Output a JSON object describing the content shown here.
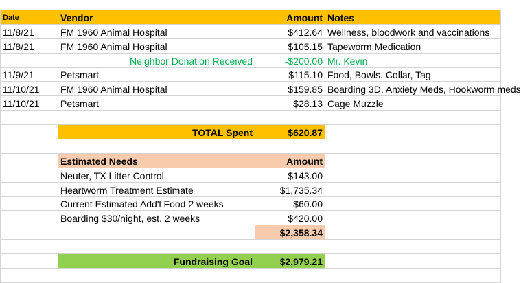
{
  "header": {
    "date": "Date",
    "vendor": "Vendor",
    "amount": "Amount",
    "notes": "Notes"
  },
  "expenses": [
    {
      "date": "11/8/21",
      "vendor": "FM 1960 Animal Hospital",
      "amount": "$412.64",
      "notes": "Wellness, bloodwork and vaccinations"
    },
    {
      "date": "11/8/21",
      "vendor": "FM 1960 Animal Hospital",
      "amount": "$105.15",
      "notes": "Tapeworm Medication"
    },
    {
      "date": "",
      "vendor": "Neighbor Donation Received",
      "amount": "-$200.00",
      "notes": "Mr. Kevin",
      "style": "donation"
    },
    {
      "date": "11/9/21",
      "vendor": "Petsmart",
      "amount": "$115.10",
      "notes": "Food, Bowls. Collar, Tag"
    },
    {
      "date": "11/10/21",
      "vendor": "FM 1960 Animal Hospital",
      "amount": "$159.85",
      "notes": "Boarding 3D, Anxiety Meds, Hookworm meds"
    },
    {
      "date": "11/10/21",
      "vendor": "Petsmart",
      "amount": "$28.13",
      "notes": "Cage Muzzle"
    }
  ],
  "total": {
    "label": "TOTAL Spent",
    "amount": "$620.87"
  },
  "estimated": {
    "header_label": "Estimated Needs",
    "header_amount": "Amount",
    "items": [
      {
        "label": "Neuter, TX Litter Control",
        "amount": "$143.00"
      },
      {
        "label": "Heartworm Treatment Estimate",
        "amount": "$1,735.34"
      },
      {
        "label": "Current Estimated Add'l Food 2 weeks",
        "amount": "$60.00"
      },
      {
        "label": "Boarding $30/night, est. 2 weeks",
        "amount": "$420.00"
      }
    ],
    "subtotal": "$2,358.34"
  },
  "goal": {
    "label": "Fundraising Goal",
    "amount": "$2,979.21"
  },
  "colors": {
    "header": "#ffc000",
    "estimated": "#f8cbad",
    "goal": "#92d050",
    "donation_text": "#00b050"
  }
}
